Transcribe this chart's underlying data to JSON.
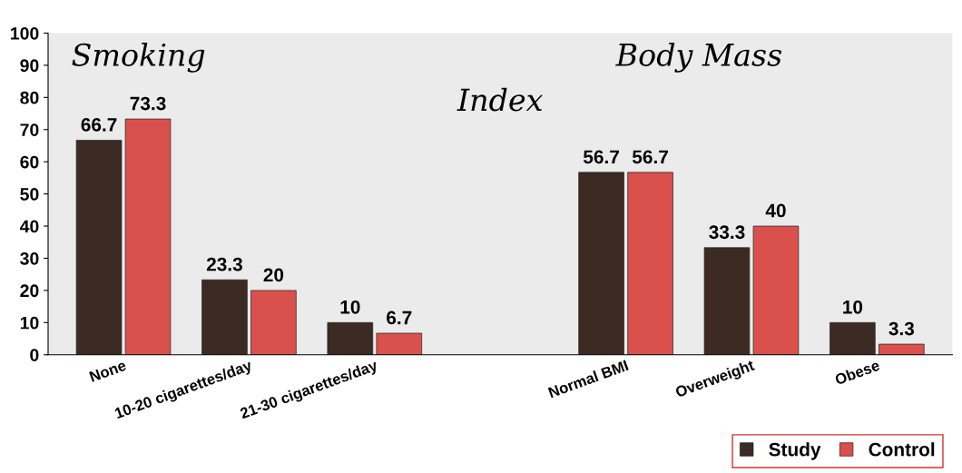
{
  "chart_data": {
    "type": "bar",
    "categories": [
      "None",
      "10-20 cigarettes/day",
      "21-30 cigarettes/day",
      null,
      "Normal BMI",
      "Overweight",
      "Obese"
    ],
    "series": [
      {
        "name": "Study",
        "color": "#3b2b22",
        "values": [
          66.7,
          23.3,
          10,
          null,
          56.7,
          33.3,
          10
        ]
      },
      {
        "name": "Control",
        "color": "#d9504c",
        "values": [
          73.3,
          20,
          6.7,
          null,
          56.7,
          40,
          3.3
        ]
      }
    ],
    "annotations": [
      "Smoking",
      "Body Mass Index"
    ],
    "ylim": [
      0,
      100
    ],
    "yticks": [
      0,
      10,
      20,
      30,
      40,
      50,
      60,
      70,
      80,
      90,
      100
    ],
    "data_labels": true,
    "grid": false,
    "legend": "bottom right"
  }
}
